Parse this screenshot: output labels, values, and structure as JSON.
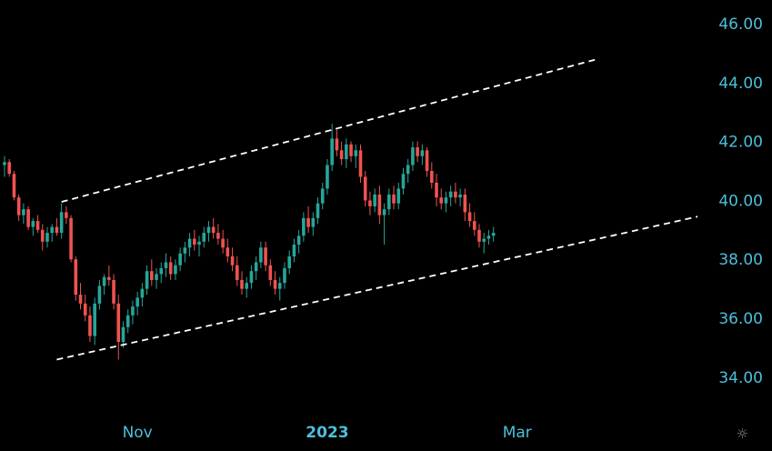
{
  "chart_data": {
    "type": "candlestick",
    "y_axis": {
      "ticks": [
        "46.00",
        "44.00",
        "42.00",
        "40.00",
        "38.00",
        "36.00",
        "34.00"
      ],
      "range": [
        32.3,
        46.8
      ],
      "position": "right"
    },
    "x_axis": {
      "ticks": [
        {
          "label": "Nov",
          "bold": false,
          "index": 28
        },
        {
          "label": "2023",
          "bold": true,
          "index": 68
        },
        {
          "label": "Mar",
          "bold": false,
          "index": 108
        }
      ]
    },
    "colors": {
      "up": "#26a69a",
      "down": "#ef5350",
      "trendline": "#ffffff",
      "axis_text": "#4dbfd9"
    },
    "candles": [
      [
        41.2,
        41.5,
        40.8,
        41.3
      ],
      [
        41.3,
        41.4,
        40.8,
        40.9
      ],
      [
        40.9,
        41.0,
        40.0,
        40.1
      ],
      [
        40.1,
        40.2,
        39.3,
        39.5
      ],
      [
        39.5,
        39.9,
        39.2,
        39.7
      ],
      [
        39.7,
        39.8,
        39.0,
        39.1
      ],
      [
        39.1,
        39.4,
        38.8,
        39.3
      ],
      [
        39.3,
        39.5,
        38.9,
        39.0
      ],
      [
        39.0,
        39.2,
        38.3,
        38.6
      ],
      [
        38.6,
        39.1,
        38.4,
        38.9
      ],
      [
        38.9,
        39.2,
        38.6,
        39.1
      ],
      [
        39.1,
        39.4,
        38.8,
        38.9
      ],
      [
        38.9,
        39.9,
        38.7,
        39.6
      ],
      [
        39.6,
        39.8,
        39.2,
        39.4
      ],
      [
        39.4,
        39.5,
        37.9,
        38.0
      ],
      [
        38.0,
        38.1,
        36.6,
        36.8
      ],
      [
        36.8,
        37.2,
        36.3,
        36.5
      ],
      [
        36.5,
        36.8,
        35.9,
        36.1
      ],
      [
        36.1,
        36.4,
        35.2,
        35.4
      ],
      [
        35.4,
        36.7,
        35.1,
        36.5
      ],
      [
        36.5,
        37.3,
        36.3,
        37.1
      ],
      [
        37.1,
        37.5,
        36.8,
        37.4
      ],
      [
        37.4,
        37.8,
        37.1,
        37.3
      ],
      [
        37.3,
        37.5,
        36.3,
        36.5
      ],
      [
        36.5,
        36.8,
        34.6,
        35.2
      ],
      [
        35.2,
        35.9,
        35.0,
        35.7
      ],
      [
        35.7,
        36.3,
        35.5,
        36.1
      ],
      [
        36.1,
        36.6,
        35.8,
        36.4
      ],
      [
        36.4,
        36.9,
        36.1,
        36.7
      ],
      [
        36.7,
        37.2,
        36.4,
        37.0
      ],
      [
        37.0,
        37.8,
        36.8,
        37.6
      ],
      [
        37.6,
        38.0,
        37.1,
        37.3
      ],
      [
        37.3,
        37.7,
        37.0,
        37.5
      ],
      [
        37.5,
        37.9,
        37.2,
        37.7
      ],
      [
        37.7,
        38.2,
        37.4,
        37.9
      ],
      [
        37.9,
        38.1,
        37.3,
        37.5
      ],
      [
        37.5,
        38.0,
        37.3,
        37.8
      ],
      [
        37.8,
        38.4,
        37.6,
        38.2
      ],
      [
        38.2,
        38.6,
        37.9,
        38.4
      ],
      [
        38.4,
        38.9,
        38.1,
        38.7
      ],
      [
        38.7,
        39.0,
        38.3,
        38.5
      ],
      [
        38.5,
        38.8,
        38.1,
        38.6
      ],
      [
        38.6,
        39.1,
        38.4,
        38.9
      ],
      [
        38.9,
        39.3,
        38.6,
        39.1
      ],
      [
        39.1,
        39.4,
        38.7,
        38.9
      ],
      [
        38.9,
        39.2,
        38.5,
        38.7
      ],
      [
        38.7,
        39.0,
        38.2,
        38.4
      ],
      [
        38.4,
        38.7,
        37.9,
        38.1
      ],
      [
        38.1,
        38.4,
        37.6,
        37.8
      ],
      [
        37.8,
        38.1,
        37.1,
        37.3
      ],
      [
        37.3,
        37.6,
        36.8,
        37.0
      ],
      [
        37.0,
        37.4,
        36.7,
        37.2
      ],
      [
        37.2,
        37.8,
        37.0,
        37.6
      ],
      [
        37.6,
        38.1,
        37.3,
        37.9
      ],
      [
        37.9,
        38.6,
        37.7,
        38.4
      ],
      [
        38.4,
        38.6,
        37.6,
        37.8
      ],
      [
        37.8,
        38.0,
        37.1,
        37.3
      ],
      [
        37.3,
        37.6,
        36.8,
        37.0
      ],
      [
        37.0,
        37.4,
        36.6,
        37.2
      ],
      [
        37.2,
        37.9,
        37.0,
        37.7
      ],
      [
        37.7,
        38.3,
        37.5,
        38.1
      ],
      [
        38.1,
        38.7,
        37.9,
        38.5
      ],
      [
        38.5,
        39.0,
        38.2,
        38.8
      ],
      [
        38.8,
        39.6,
        38.6,
        39.4
      ],
      [
        39.4,
        39.8,
        38.9,
        39.1
      ],
      [
        39.1,
        39.6,
        38.8,
        39.4
      ],
      [
        39.4,
        40.1,
        39.2,
        39.9
      ],
      [
        39.9,
        40.6,
        39.7,
        40.4
      ],
      [
        40.4,
        41.4,
        40.2,
        41.2
      ],
      [
        41.2,
        42.6,
        41.0,
        42.1
      ],
      [
        42.1,
        42.4,
        41.5,
        41.7
      ],
      [
        41.7,
        42.0,
        41.2,
        41.4
      ],
      [
        41.4,
        42.1,
        41.1,
        41.9
      ],
      [
        41.9,
        42.0,
        41.3,
        41.5
      ],
      [
        41.5,
        41.9,
        41.1,
        41.7
      ],
      [
        41.7,
        41.9,
        40.6,
        40.8
      ],
      [
        40.8,
        41.0,
        39.8,
        40.0
      ],
      [
        40.0,
        40.3,
        39.5,
        39.8
      ],
      [
        39.8,
        40.4,
        39.6,
        40.2
      ],
      [
        40.2,
        40.5,
        39.2,
        39.5
      ],
      [
        39.5,
        39.9,
        38.5,
        39.7
      ],
      [
        39.7,
        40.4,
        39.5,
        40.2
      ],
      [
        40.2,
        40.5,
        39.7,
        39.9
      ],
      [
        39.9,
        40.6,
        39.7,
        40.4
      ],
      [
        40.4,
        41.1,
        40.2,
        40.9
      ],
      [
        40.9,
        41.4,
        40.6,
        41.2
      ],
      [
        41.2,
        42.0,
        41.0,
        41.8
      ],
      [
        41.8,
        42.0,
        41.3,
        41.5
      ],
      [
        41.5,
        41.9,
        41.2,
        41.7
      ],
      [
        41.7,
        41.8,
        40.8,
        41.0
      ],
      [
        41.0,
        41.3,
        40.4,
        40.6
      ],
      [
        40.6,
        40.9,
        39.8,
        40.1
      ],
      [
        40.1,
        40.4,
        39.7,
        39.9
      ],
      [
        39.9,
        40.3,
        39.6,
        40.1
      ],
      [
        40.1,
        40.5,
        39.8,
        40.3
      ],
      [
        40.3,
        40.6,
        39.9,
        40.1
      ],
      [
        40.1,
        40.4,
        39.8,
        40.2
      ],
      [
        40.2,
        40.4,
        39.3,
        39.6
      ],
      [
        39.6,
        39.9,
        39.1,
        39.3
      ],
      [
        39.3,
        39.6,
        38.8,
        39.0
      ],
      [
        39.0,
        39.2,
        38.4,
        38.6
      ],
      [
        38.6,
        38.9,
        38.2,
        38.7
      ],
      [
        38.7,
        39.0,
        38.5,
        38.8
      ],
      [
        38.8,
        39.1,
        38.6,
        38.9
      ]
    ],
    "trendlines": [
      {
        "x1": 20,
        "y1": 39.95,
        "x2": 126,
        "y2": 44.8
      },
      {
        "x1": 19,
        "y1": 34.6,
        "x2": 147,
        "y2": 39.45
      }
    ]
  },
  "ui": {
    "settings_icon": "sun-gear-icon",
    "settings_glyph": "☼"
  }
}
